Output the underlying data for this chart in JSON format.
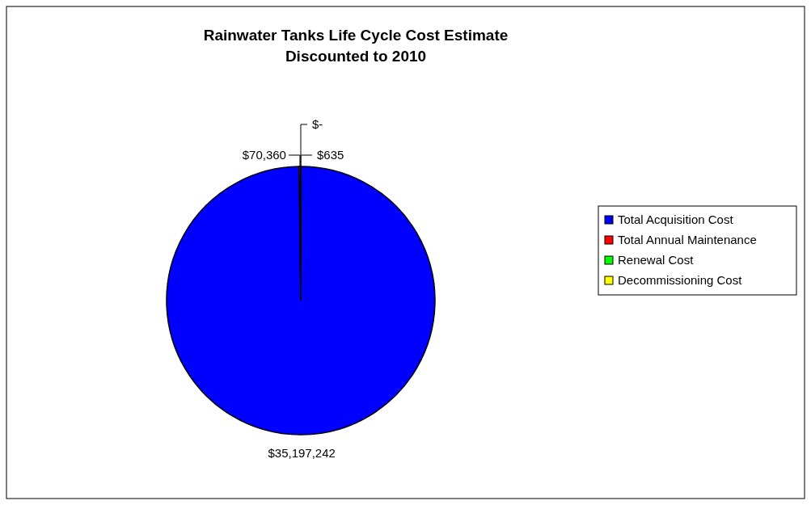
{
  "chart_data": {
    "type": "pie",
    "title": "Rainwater Tanks Life Cycle Cost Estimate\nDiscounted to 2010",
    "categories": [
      "Total Acquisition Cost",
      "Total Annual Maintenance",
      "Renewal Cost",
      "Decommissioning Cost"
    ],
    "values": [
      35197242,
      70360,
      0,
      635
    ],
    "colors": [
      "#0000ff",
      "#ff0000",
      "#00ff00",
      "#ffff00"
    ],
    "value_labels": [
      "$35,197,242",
      "$70,360",
      "$-",
      "$635"
    ],
    "legend": "right"
  }
}
